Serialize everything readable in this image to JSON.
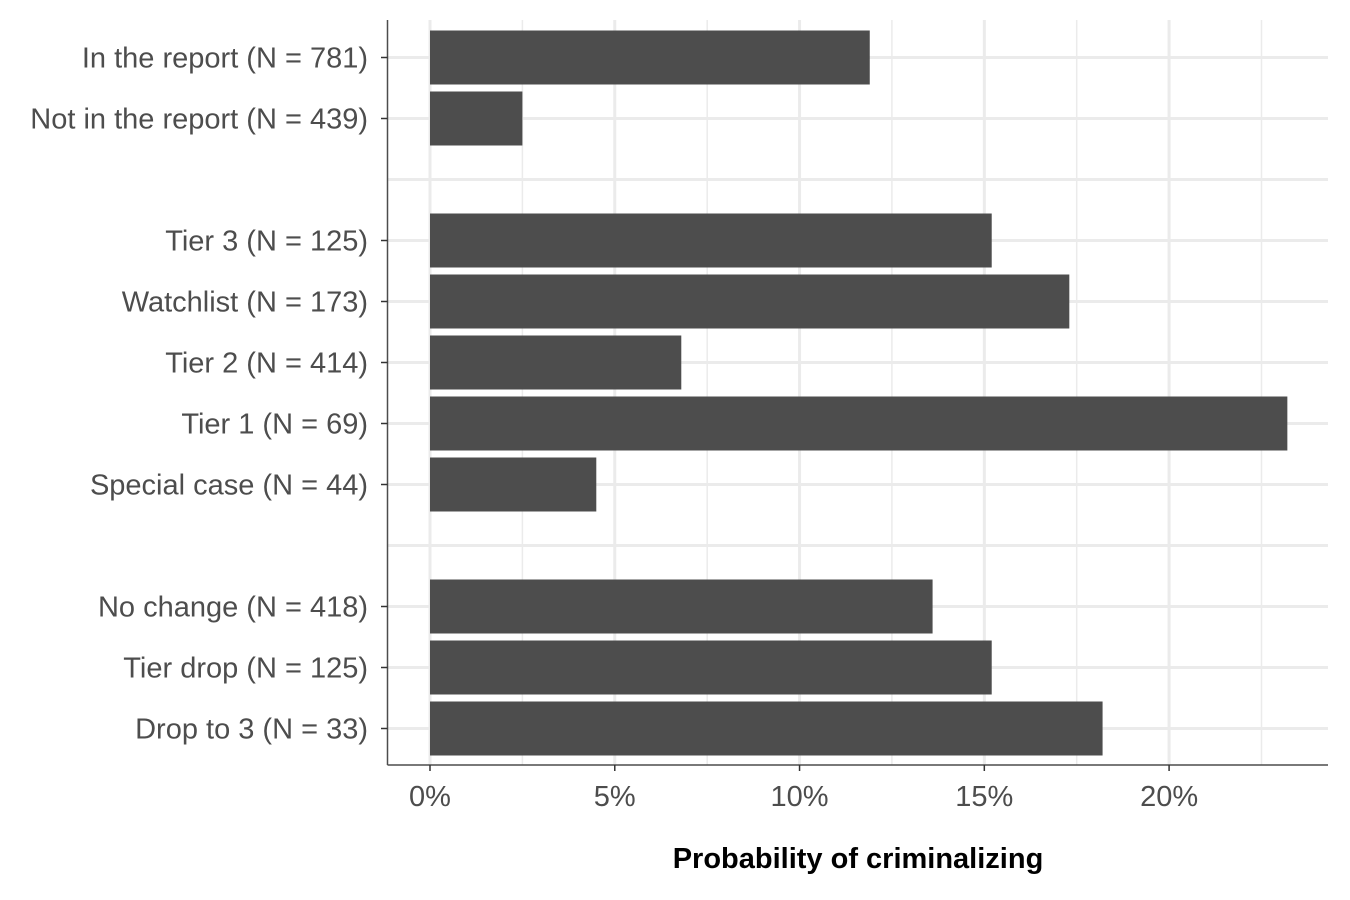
{
  "chart_data": {
    "type": "bar",
    "orientation": "horizontal",
    "xlabel": "Probability of criminalizing",
    "xlim": [
      -0.0115,
      0.243
    ],
    "x_ticks": [
      0,
      0.05,
      0.1,
      0.15,
      0.2
    ],
    "x_tick_labels": [
      "0%",
      "5%",
      "10%",
      "15%",
      "20%"
    ],
    "grid": true,
    "bar_color": "#4d4d4d",
    "grid_color": "#ebebeb",
    "groups": [
      {
        "categories": [
          "In the report (N = 781)",
          "Not in the report (N = 439)"
        ],
        "values": [
          0.119,
          0.025
        ]
      },
      {
        "categories": [
          "Tier 3 (N = 125)",
          "Watchlist (N = 173)",
          "Tier 2 (N = 414)",
          "Tier 1 (N = 69)",
          "Special case (N = 44)"
        ],
        "values": [
          0.152,
          0.173,
          0.068,
          0.232,
          0.045
        ]
      },
      {
        "categories": [
          "No change (N = 418)",
          "Tier drop (N = 125)",
          "Drop to 3 (N = 33)"
        ],
        "values": [
          0.136,
          0.152,
          0.182
        ]
      }
    ]
  }
}
